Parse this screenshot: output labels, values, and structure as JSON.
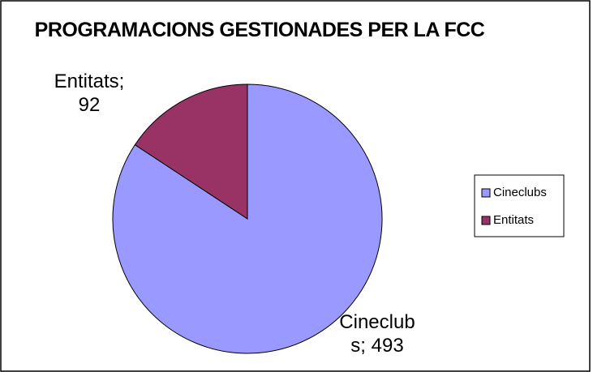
{
  "chart_data": {
    "type": "pie",
    "title": "PROGRAMACIONS GESTIONADES PER LA FCC",
    "categories": [
      "Cineclubs",
      "Entitats"
    ],
    "values": [
      493,
      92
    ],
    "value_labels": [
      "Cineclubs; 493",
      "Entitats; 92"
    ],
    "colors": [
      "#9999ff",
      "#993366"
    ],
    "legend": "right"
  }
}
